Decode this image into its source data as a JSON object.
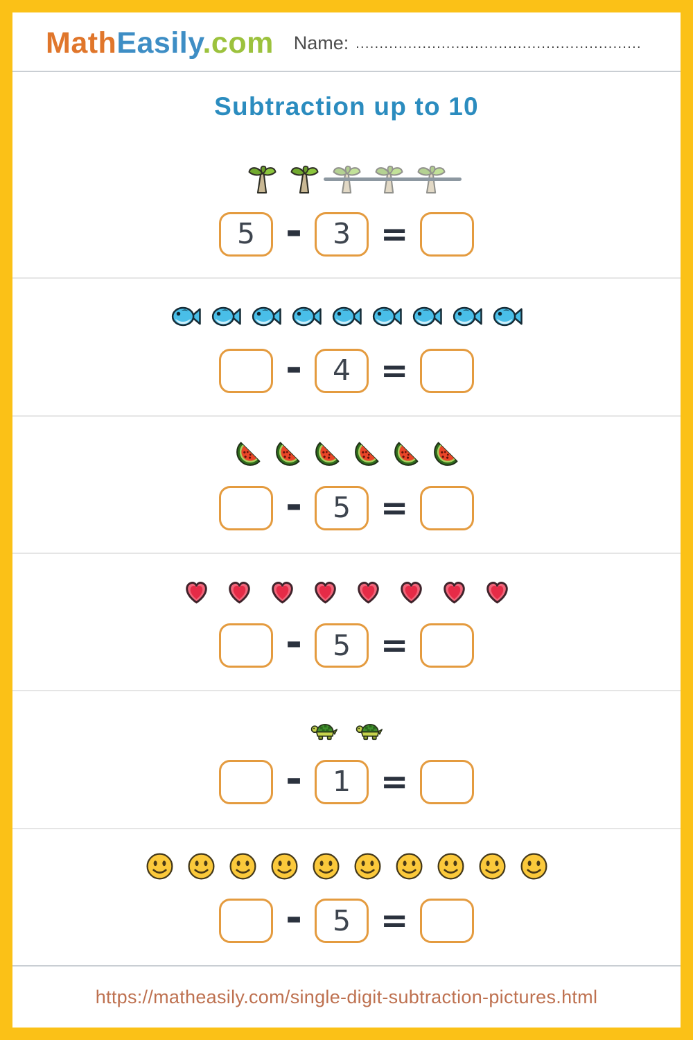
{
  "colors": {
    "page_border": "#FBC117",
    "box_border": "#E49B3F",
    "title_blue": "#2B8CBF",
    "logo_orange": "#E0762B",
    "logo_blue": "#3E8EC5",
    "logo_green": "#9CC23D",
    "footer_link": "#BE7150",
    "strikethrough_gray": "#8D98A1"
  },
  "header": {
    "logo": {
      "part1": "Math",
      "part2": "Easily",
      "part3": ".com"
    },
    "name_label": "Name:",
    "name_dots": "............................................................"
  },
  "title": {
    "text": "Subtraction up to 10"
  },
  "operators": {
    "minus": "-",
    "equals": "="
  },
  "problems": [
    {
      "icon": "palm-tree",
      "icon_label": "palm tree",
      "count": 5,
      "crossed": 3,
      "minuend": "5",
      "subtrahend": "3",
      "result": ""
    },
    {
      "icon": "fish",
      "icon_label": "fish",
      "count": 9,
      "crossed": 0,
      "minuend": "",
      "subtrahend": "4",
      "result": ""
    },
    {
      "icon": "watermelon",
      "icon_label": "watermelon",
      "count": 6,
      "crossed": 0,
      "minuend": "",
      "subtrahend": "5",
      "result": ""
    },
    {
      "icon": "heart",
      "icon_label": "heart",
      "count": 8,
      "crossed": 0,
      "minuend": "",
      "subtrahend": "5",
      "result": ""
    },
    {
      "icon": "turtle",
      "icon_label": "turtle",
      "count": 2,
      "crossed": 0,
      "minuend": "",
      "subtrahend": "1",
      "result": ""
    },
    {
      "icon": "smiley",
      "icon_label": "smiley face",
      "count": 10,
      "crossed": 0,
      "minuend": "",
      "subtrahend": "5",
      "result": ""
    }
  ],
  "footer": {
    "url": "https://matheasily.com/single-digit-subtraction-pictures.html"
  }
}
